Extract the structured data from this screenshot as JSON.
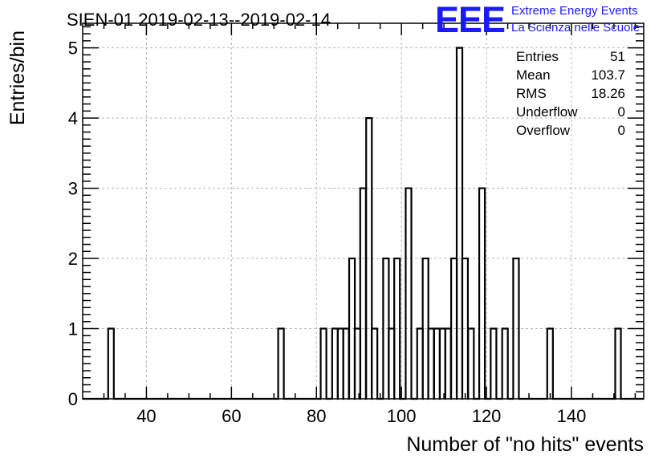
{
  "chart_data": {
    "type": "bar",
    "title": "SIEN-01 2019-02-13--2019-02-14",
    "xlabel": "Number of \"no hits\" events",
    "ylabel": "Entries/bin",
    "xlim": [
      25,
      157
    ],
    "ylim": [
      0,
      5.35
    ],
    "grid": true,
    "xticks": [
      40,
      60,
      80,
      100,
      120,
      140
    ],
    "yticks": [
      0,
      1,
      2,
      3,
      4,
      5
    ],
    "bin_width": 1.33,
    "bins": [
      {
        "x": 31.0,
        "value": 1
      },
      {
        "x": 71.0,
        "value": 1
      },
      {
        "x": 81.0,
        "value": 1
      },
      {
        "x": 83.7,
        "value": 1
      },
      {
        "x": 85.0,
        "value": 1
      },
      {
        "x": 86.3,
        "value": 1
      },
      {
        "x": 87.7,
        "value": 2
      },
      {
        "x": 89.0,
        "value": 1
      },
      {
        "x": 90.3,
        "value": 3
      },
      {
        "x": 91.7,
        "value": 4
      },
      {
        "x": 93.0,
        "value": 1
      },
      {
        "x": 95.7,
        "value": 2
      },
      {
        "x": 97.0,
        "value": 1
      },
      {
        "x": 98.3,
        "value": 2
      },
      {
        "x": 101.0,
        "value": 3
      },
      {
        "x": 103.7,
        "value": 1
      },
      {
        "x": 105.0,
        "value": 2
      },
      {
        "x": 106.3,
        "value": 1
      },
      {
        "x": 107.7,
        "value": 1
      },
      {
        "x": 109.0,
        "value": 1
      },
      {
        "x": 110.3,
        "value": 1
      },
      {
        "x": 111.7,
        "value": 2
      },
      {
        "x": 113.0,
        "value": 5
      },
      {
        "x": 114.3,
        "value": 2
      },
      {
        "x": 115.7,
        "value": 1
      },
      {
        "x": 118.3,
        "value": 3
      },
      {
        "x": 121.0,
        "value": 1
      },
      {
        "x": 123.7,
        "value": 1
      },
      {
        "x": 126.3,
        "value": 2
      },
      {
        "x": 134.3,
        "value": 1
      },
      {
        "x": 150.3,
        "value": 1
      }
    ],
    "stats": [
      {
        "label": "Entries",
        "value": "51"
      },
      {
        "label": "Mean",
        "value": "103.7"
      },
      {
        "label": "RMS",
        "value": "18.26"
      },
      {
        "label": "Underflow",
        "value": "0"
      },
      {
        "label": "Overflow",
        "value": "0"
      }
    ],
    "legend_position": "top-right",
    "line_color": "#000000",
    "grid_color": "#b4b4b4"
  },
  "logo": {
    "mark": "EEE",
    "line1": "Extreme Energy Events",
    "line2": "La Scienza nelle Scuole",
    "color": "#1a1aff"
  }
}
